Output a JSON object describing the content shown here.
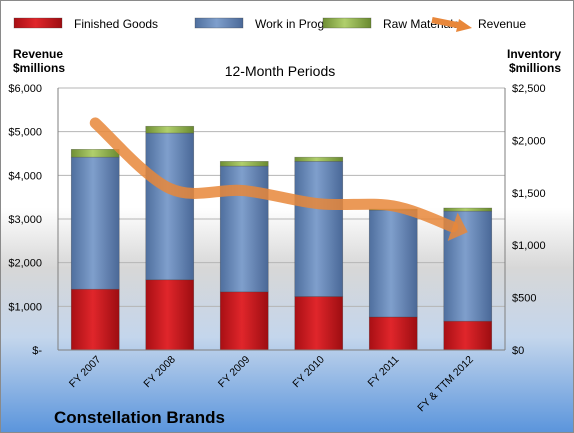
{
  "chart_data": {
    "type": "bar",
    "title": "12-Month Periods",
    "company": "Constellation Brands",
    "left_axis_label": [
      "Revenue",
      "$millions"
    ],
    "right_axis_label": [
      "Inventory",
      "$millions"
    ],
    "left_ylim": [
      0,
      6000
    ],
    "left_ticks": [
      0,
      1000,
      2000,
      3000,
      4000,
      5000,
      6000
    ],
    "left_tick_labels": [
      "$-",
      "$1,000",
      "$2,000",
      "$3,000",
      "$4,000",
      "$5,000",
      "$6,000"
    ],
    "right_ylim": [
      0,
      2500
    ],
    "right_ticks": [
      0,
      500,
      1000,
      1500,
      2000,
      2500
    ],
    "right_tick_labels": [
      "$0",
      "$500",
      "$1,000",
      "$1,500",
      "$2,000",
      "$2,500"
    ],
    "categories": [
      "FY 2007",
      "FY 2008",
      "FY 2009",
      "FY 2010",
      "FY 2011",
      "FY & TTM 2012"
    ],
    "stacked": true,
    "series": [
      {
        "name": "Finished Goods",
        "axis": "right",
        "color": "#d0181d",
        "values": [
          580,
          670,
          555,
          510,
          315,
          275
        ]
      },
      {
        "name": "Work in Progress",
        "axis": "right",
        "color": "#6f8fbf",
        "values": [
          1260,
          1400,
          1200,
          1290,
          1020,
          1050
        ]
      },
      {
        "name": "Raw Materials",
        "axis": "right",
        "color": "#9bbb59",
        "values": [
          75,
          65,
          45,
          40,
          10,
          30
        ]
      },
      {
        "name": "Revenue",
        "type": "line",
        "axis": "left",
        "color": "#e8873a",
        "values": [
          5200,
          3700,
          3650,
          3350,
          3300,
          2700
        ]
      }
    ],
    "legend_position": "top",
    "grid": true
  }
}
